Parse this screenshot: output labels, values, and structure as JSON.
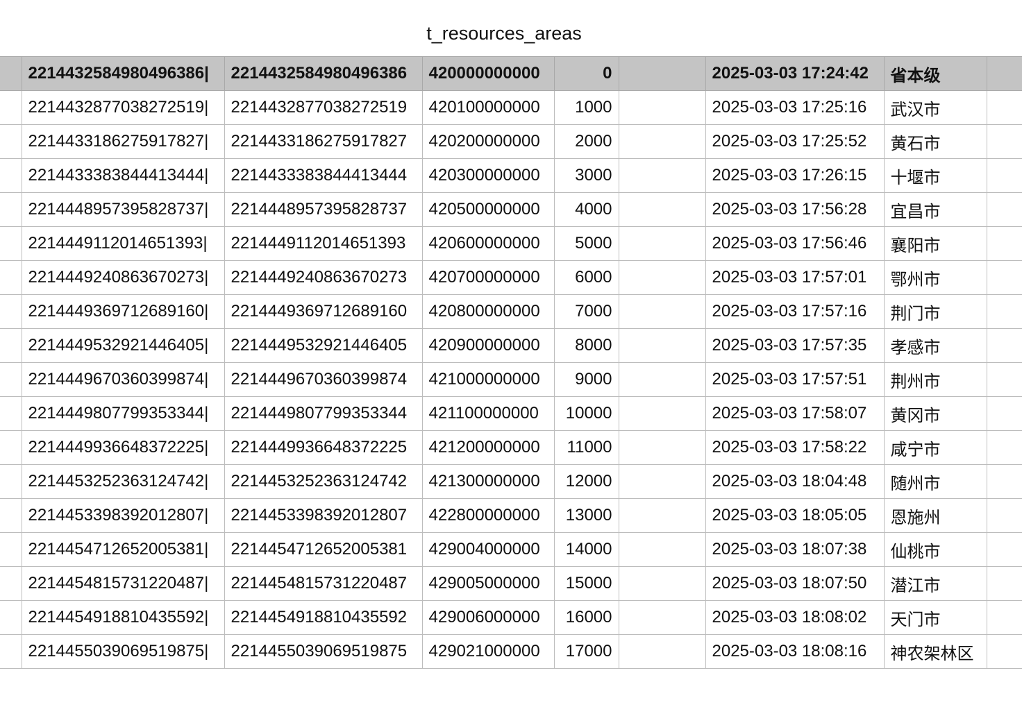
{
  "sheet": {
    "title": "t_resources_areas"
  },
  "rows": [
    {
      "id_pipe": "2214432584980496386|",
      "id": "2214432584980496386",
      "code": "420000000000",
      "order": "0",
      "blank": "",
      "created": "2025-03-03 17:24:42",
      "name": "省本级"
    },
    {
      "id_pipe": "2214432877038272519|",
      "id": "2214432877038272519",
      "code": "420100000000",
      "order": "1000",
      "blank": "",
      "created": "2025-03-03 17:25:16",
      "name": "武汉市"
    },
    {
      "id_pipe": "2214433186275917827|",
      "id": "2214433186275917827",
      "code": "420200000000",
      "order": "2000",
      "blank": "",
      "created": "2025-03-03 17:25:52",
      "name": "黄石市"
    },
    {
      "id_pipe": "2214433383844413444|",
      "id": "2214433383844413444",
      "code": "420300000000",
      "order": "3000",
      "blank": "",
      "created": "2025-03-03 17:26:15",
      "name": "十堰市"
    },
    {
      "id_pipe": "2214448957395828737|",
      "id": "2214448957395828737",
      "code": "420500000000",
      "order": "4000",
      "blank": "",
      "created": "2025-03-03 17:56:28",
      "name": "宜昌市"
    },
    {
      "id_pipe": "2214449112014651393|",
      "id": "2214449112014651393",
      "code": "420600000000",
      "order": "5000",
      "blank": "",
      "created": "2025-03-03 17:56:46",
      "name": "襄阳市"
    },
    {
      "id_pipe": "2214449240863670273|",
      "id": "2214449240863670273",
      "code": "420700000000",
      "order": "6000",
      "blank": "",
      "created": "2025-03-03 17:57:01",
      "name": "鄂州市"
    },
    {
      "id_pipe": "2214449369712689160|",
      "id": "2214449369712689160",
      "code": "420800000000",
      "order": "7000",
      "blank": "",
      "created": "2025-03-03 17:57:16",
      "name": "荆门市"
    },
    {
      "id_pipe": "2214449532921446405|",
      "id": "2214449532921446405",
      "code": "420900000000",
      "order": "8000",
      "blank": "",
      "created": "2025-03-03 17:57:35",
      "name": "孝感市"
    },
    {
      "id_pipe": "2214449670360399874|",
      "id": "2214449670360399874",
      "code": "421000000000",
      "order": "9000",
      "blank": "",
      "created": "2025-03-03 17:57:51",
      "name": "荆州市"
    },
    {
      "id_pipe": "2214449807799353344|",
      "id": "2214449807799353344",
      "code": "421100000000",
      "order": "10000",
      "blank": "",
      "created": "2025-03-03 17:58:07",
      "name": "黄冈市"
    },
    {
      "id_pipe": "2214449936648372225|",
      "id": "2214449936648372225",
      "code": "421200000000",
      "order": "11000",
      "blank": "",
      "created": "2025-03-03 17:58:22",
      "name": "咸宁市"
    },
    {
      "id_pipe": "2214453252363124742|",
      "id": "2214453252363124742",
      "code": "421300000000",
      "order": "12000",
      "blank": "",
      "created": "2025-03-03 18:04:48",
      "name": "随州市"
    },
    {
      "id_pipe": "2214453398392012807|",
      "id": "2214453398392012807",
      "code": "422800000000",
      "order": "13000",
      "blank": "",
      "created": "2025-03-03 18:05:05",
      "name": "恩施州"
    },
    {
      "id_pipe": "2214454712652005381|",
      "id": "2214454712652005381",
      "code": "429004000000",
      "order": "14000",
      "blank": "",
      "created": "2025-03-03 18:07:38",
      "name": "仙桃市"
    },
    {
      "id_pipe": "2214454815731220487|",
      "id": "2214454815731220487",
      "code": "429005000000",
      "order": "15000",
      "blank": "",
      "created": "2025-03-03 18:07:50",
      "name": "潜江市"
    },
    {
      "id_pipe": "2214454918810435592|",
      "id": "2214454918810435592",
      "code": "429006000000",
      "order": "16000",
      "blank": "",
      "created": "2025-03-03 18:08:02",
      "name": "天门市"
    },
    {
      "id_pipe": "2214455039069519875|",
      "id": "2214455039069519875",
      "code": "429021000000",
      "order": "17000",
      "blank": "",
      "created": "2025-03-03 18:08:16",
      "name": "神农架林区"
    }
  ]
}
